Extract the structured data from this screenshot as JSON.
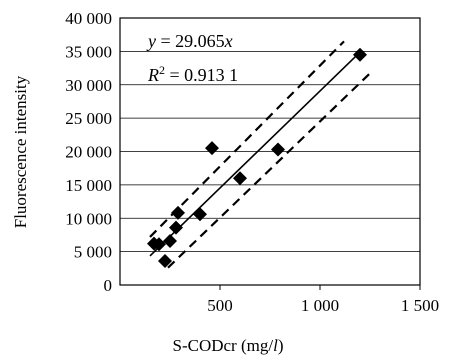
{
  "chart_data": {
    "type": "scatter",
    "xlabel": "S-CODcr (mg/l)",
    "ylabel": "Fluorescence intensity",
    "xlim": [
      0,
      1500
    ],
    "ylim": [
      0,
      40000
    ],
    "x_ticks": [
      "500",
      "1 000",
      "1 500"
    ],
    "y_ticks": [
      "0",
      "5 000",
      "10 000",
      "15 000",
      "20 000",
      "25 000",
      "30 000",
      "35 000",
      "40 000"
    ],
    "grid": "horizontal",
    "series": [
      {
        "marker": "diamond",
        "points": [
          {
            "x": 170,
            "y": 6200
          },
          {
            "x": 195,
            "y": 6100
          },
          {
            "x": 225,
            "y": 3600
          },
          {
            "x": 250,
            "y": 6600
          },
          {
            "x": 280,
            "y": 8600
          },
          {
            "x": 290,
            "y": 10800
          },
          {
            "x": 400,
            "y": 10600
          },
          {
            "x": 460,
            "y": 20500
          },
          {
            "x": 600,
            "y": 16000
          },
          {
            "x": 790,
            "y": 20300
          },
          {
            "x": 1200,
            "y": 34500
          }
        ]
      }
    ],
    "fit_line": {
      "slope": 29.065,
      "x_range": [
        150,
        1200
      ],
      "style": "solid"
    },
    "confidence_bands": [
      {
        "x": [
          150,
          1120
        ],
        "y": [
          7200,
          36500
        ],
        "style": "dashed"
      },
      {
        "x": [
          240,
          1260
        ],
        "y": [
          2600,
          32000
        ],
        "style": "dashed"
      }
    ],
    "annotations": {
      "equation": "y = 29.065x",
      "r_squared": "R² = 0.913 1"
    }
  }
}
